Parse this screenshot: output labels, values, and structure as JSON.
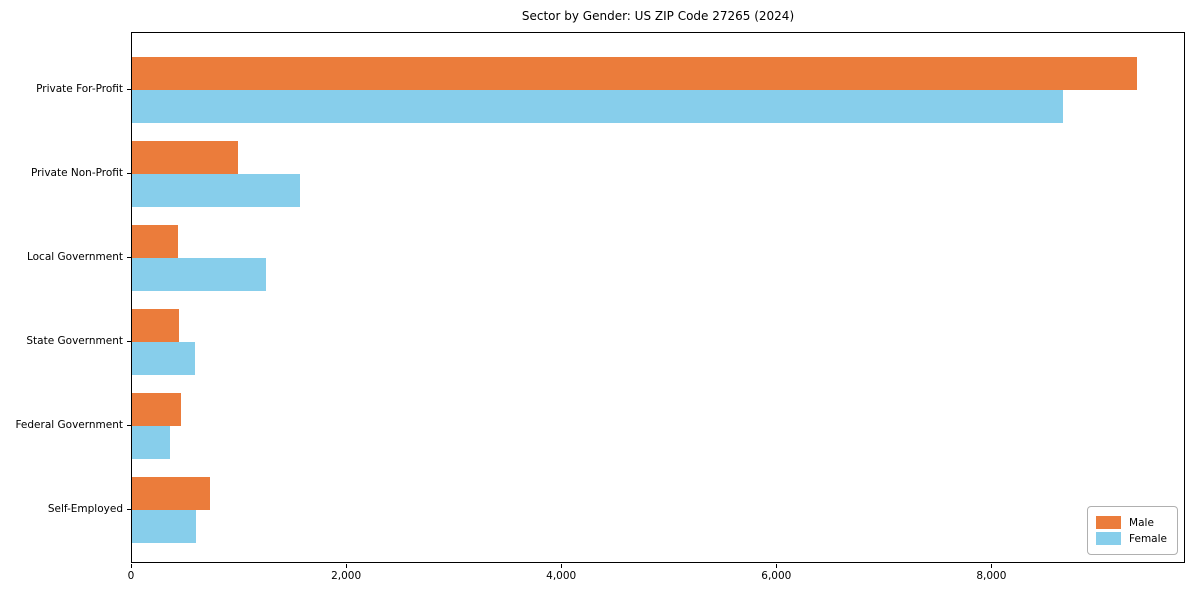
{
  "chart_data": {
    "type": "bar",
    "orientation": "horizontal",
    "title": "Sector by Gender: US ZIP Code 27265 (2024)",
    "categories": [
      "Private For-Profit",
      "Private Non-Profit",
      "Local Government",
      "State Government",
      "Federal Government",
      "Self-Employed"
    ],
    "series": [
      {
        "name": "Male",
        "color": "#EB7C3B",
        "values": [
          9340,
          985,
          430,
          440,
          455,
          725
        ]
      },
      {
        "name": "Female",
        "color": "#87CEEB",
        "values": [
          8660,
          1565,
          1245,
          585,
          355,
          595
        ]
      }
    ],
    "xlabel": "",
    "ylabel": "",
    "xlim": [
      0,
      9800
    ],
    "xticks": [
      0,
      2000,
      4000,
      6000,
      8000
    ],
    "xtick_labels": [
      "0",
      "2,000",
      "4,000",
      "6,000",
      "8,000"
    ],
    "grid": false,
    "legend_position": "lower right"
  }
}
